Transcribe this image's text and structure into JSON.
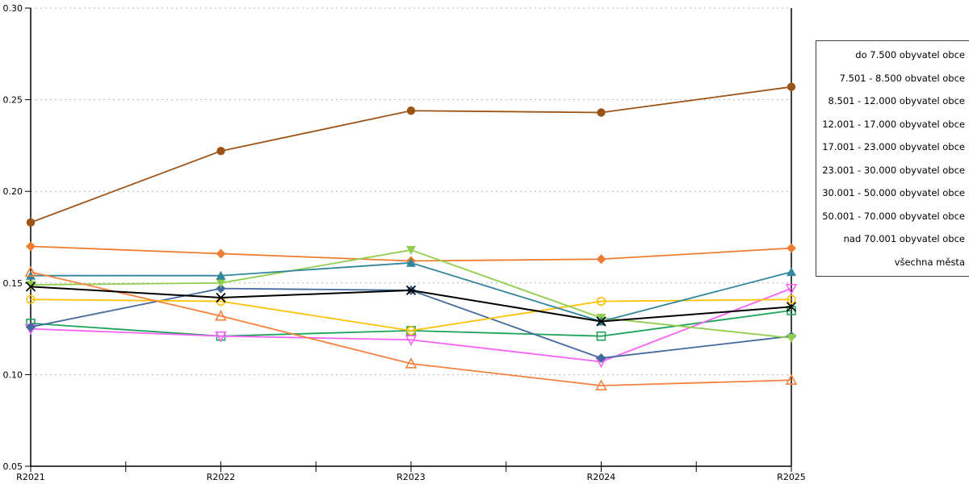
{
  "chart_data": {
    "type": "line",
    "categories": [
      "R2021",
      "R2022",
      "R2023",
      "R2024",
      "R2025"
    ],
    "series": [
      {
        "name": "do 7.500 obyvatel obce",
        "color": "#44699D",
        "marker": "diamond-filled",
        "values": [
          0.126,
          0.147,
          0.146,
          0.109,
          0.121
        ]
      },
      {
        "name": "7.501 - 8.500 obvatel obce",
        "color": "#F763F7",
        "marker": "triangle-down-open",
        "values": [
          0.125,
          0.121,
          0.119,
          0.107,
          0.147
        ]
      },
      {
        "name": "8.501 - 12.000 obyvatel obce",
        "color": "#FFC000",
        "marker": "circle-open",
        "values": [
          0.141,
          0.14,
          0.124,
          0.14,
          0.141
        ]
      },
      {
        "name": "12.001 - 17.000 obyvatel obce",
        "color": "#31859C",
        "marker": "triangle-up-filled",
        "values": [
          0.154,
          0.154,
          0.161,
          0.129,
          0.156
        ]
      },
      {
        "name": "17.001 - 23.000 obyvatel obce",
        "color": "#F4813E",
        "marker": "triangle-up-open",
        "values": [
          0.156,
          0.132,
          0.106,
          0.094,
          0.097
        ]
      },
      {
        "name": "23.001 - 30.000 obyvatel obce",
        "color": "#1EA35C",
        "marker": "square-open",
        "values": [
          0.128,
          0.121,
          0.124,
          0.121,
          0.135
        ]
      },
      {
        "name": "30.001 - 50.000 obyvatel obce",
        "color": "#92CE4E",
        "marker": "triangle-down-filled",
        "values": [
          0.149,
          0.15,
          0.168,
          0.131,
          0.12
        ]
      },
      {
        "name": "50.001 - 70.000 obyvatel obce",
        "color": "#ED7D31",
        "marker": "diamond-filled",
        "values": [
          0.17,
          0.166,
          0.162,
          0.163,
          0.169
        ]
      },
      {
        "name": "nad 70.001 obyvatel obce",
        "color": "#9D5316",
        "marker": "circle-filled",
        "values": [
          0.183,
          0.222,
          0.244,
          0.243,
          0.257
        ]
      },
      {
        "name": "všechna města",
        "color": "#000000",
        "marker": "x",
        "values": [
          0.148,
          0.142,
          0.146,
          0.129,
          0.137
        ]
      }
    ],
    "title": "",
    "xlabel": "",
    "ylabel": "",
    "ylim": [
      0.05,
      0.3
    ],
    "ytick_step": 0.05,
    "ytick_labels": [
      "0.05",
      "0.10",
      "0.15",
      "0.20",
      "0.25",
      "0.30"
    ],
    "grid": "horizontal-dotted",
    "grid_color": "#b3b3b3",
    "axis_color": "#000000",
    "legend_position": "right-box",
    "legend_items": [
      "do 7.500 obyvatel obce",
      "7.501 - 8.500 obvatel obce",
      "8.501 - 12.000 obyvatel obce",
      "12.001 - 17.000 obyvatel obce",
      "17.001 - 23.000 obyvatel obce",
      "23.001 - 30.000 obyvatel obce",
      "30.001 - 50.000 obyvatel obce",
      "50.001 - 70.000 obyvatel obce",
      "nad 70.001 obyvatel obce",
      "všechna města"
    ]
  }
}
